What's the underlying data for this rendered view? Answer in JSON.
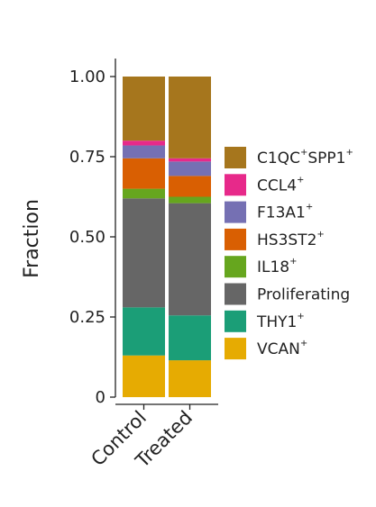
{
  "chart_data": {
    "type": "bar",
    "stacked": true,
    "title": "",
    "xlabel": "",
    "ylabel": "Fraction",
    "ylim": [
      0,
      1
    ],
    "yticks": [
      {
        "value": 0,
        "label": "0"
      },
      {
        "value": 0.25,
        "label": "0.25"
      },
      {
        "value": 0.5,
        "label": "0.50"
      },
      {
        "value": 0.75,
        "label": "0.75"
      },
      {
        "value": 1.0,
        "label": "1.00"
      }
    ],
    "categories": [
      "Control",
      "Treated"
    ],
    "grid": false,
    "legend_position": "right",
    "series": [
      {
        "name": "VCAN",
        "sup": "+",
        "color": "#e6ab02",
        "values": [
          0.13,
          0.115
        ]
      },
      {
        "name": "THY1",
        "sup": "+",
        "color": "#1b9e77",
        "values": [
          0.15,
          0.14
        ]
      },
      {
        "name": "Proliferating",
        "sup": "",
        "color": "#666666",
        "values": [
          0.34,
          0.35
        ]
      },
      {
        "name": "IL18",
        "sup": "+",
        "color": "#66a61e",
        "values": [
          0.03,
          0.02
        ]
      },
      {
        "name": "HS3ST2",
        "sup": "+",
        "color": "#d95f02",
        "values": [
          0.095,
          0.065
        ]
      },
      {
        "name": "F13A1",
        "sup": "+",
        "color": "#7570b3",
        "values": [
          0.04,
          0.045
        ]
      },
      {
        "name": "CCL4",
        "sup": "+",
        "color": "#e7298a",
        "values": [
          0.015,
          0.01
        ]
      },
      {
        "name": "C1QC",
        "sup": "+",
        "name2": "SPP1",
        "sup2": "+",
        "color": "#a6761d",
        "values": [
          0.2,
          0.255
        ]
      }
    ]
  }
}
